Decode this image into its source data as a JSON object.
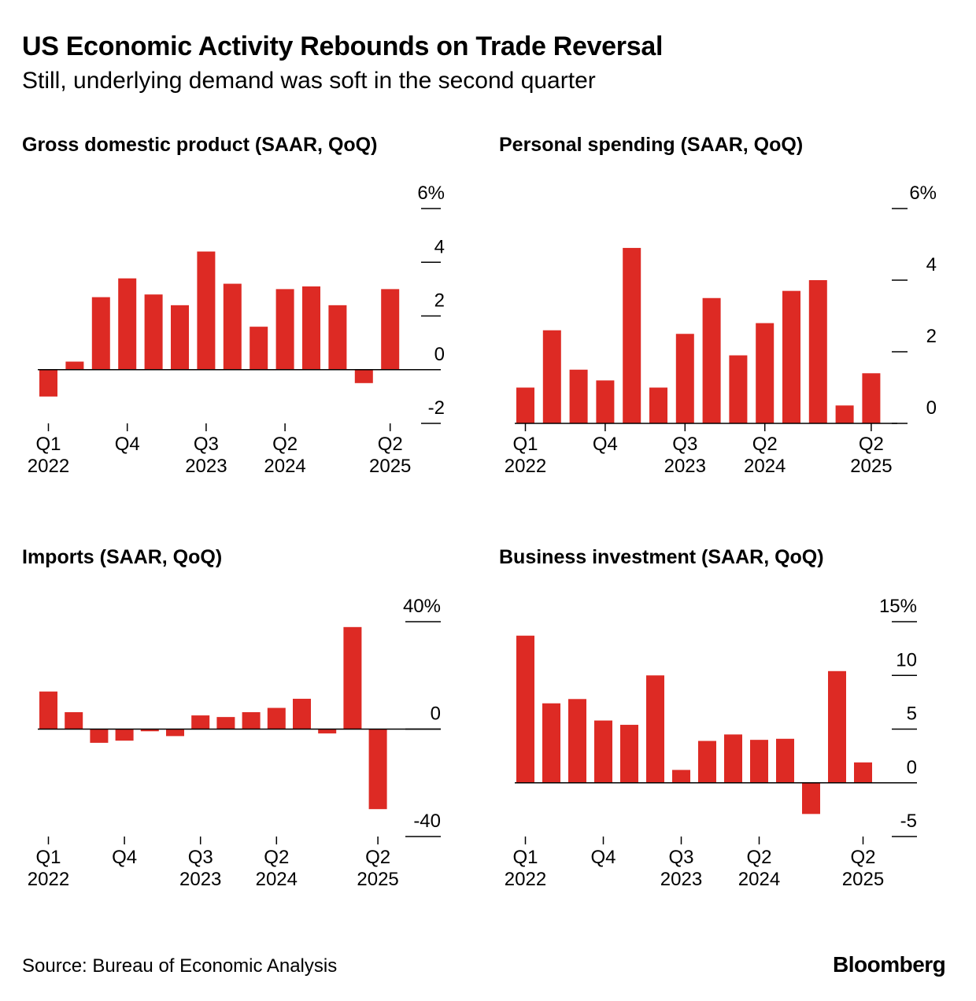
{
  "title": "US Economic Activity Rebounds on Trade Reversal",
  "subtitle": "Still, underlying demand was soft in the second quarter",
  "source": "Source: Bureau of Economic Analysis",
  "brand": "Bloomberg",
  "colors": {
    "bar": "#dd2a24"
  },
  "chart_data": [
    {
      "type": "bar",
      "title": "Gross domestic product (SAAR, QoQ)",
      "categories": [
        "Q1 2022",
        "Q2 2022",
        "Q3 2022",
        "Q4 2022",
        "Q1 2023",
        "Q2 2023",
        "Q3 2023",
        "Q4 2023",
        "Q1 2024",
        "Q2 2024",
        "Q3 2024",
        "Q4 2024",
        "Q1 2025",
        "Q2 2025"
      ],
      "values": [
        -1.0,
        0.3,
        2.7,
        3.4,
        2.8,
        2.4,
        4.4,
        3.2,
        1.6,
        3.0,
        3.1,
        2.4,
        -0.5,
        3.0
      ],
      "ylim": [
        -2,
        6
      ],
      "yticks": [
        -2,
        0,
        2,
        4,
        6
      ],
      "ytick_labels": [
        "-2",
        "0",
        "2",
        "4",
        "6%"
      ],
      "xticks": [
        {
          "index": 0,
          "q": "Q1",
          "y": "2022"
        },
        {
          "index": 3,
          "q": "Q4",
          "y": ""
        },
        {
          "index": 6,
          "q": "Q3",
          "y": "2023"
        },
        {
          "index": 9,
          "q": "Q2",
          "y": "2024"
        },
        {
          "index": 13,
          "q": "Q2",
          "y": "2025"
        }
      ]
    },
    {
      "type": "bar",
      "title": "Personal spending (SAAR, QoQ)",
      "categories": [
        "Q1 2022",
        "Q2 2022",
        "Q3 2022",
        "Q4 2022",
        "Q1 2023",
        "Q2 2023",
        "Q3 2023",
        "Q4 2023",
        "Q1 2024",
        "Q2 2024",
        "Q3 2024",
        "Q4 2024",
        "Q1 2025",
        "Q2 2025"
      ],
      "values": [
        1.0,
        2.6,
        1.5,
        1.2,
        4.9,
        1.0,
        2.5,
        3.5,
        1.9,
        2.8,
        3.7,
        4.0,
        0.5,
        1.4
      ],
      "ylim": [
        0,
        6
      ],
      "yticks": [
        0,
        2,
        4,
        6
      ],
      "ytick_labels": [
        "0",
        "2",
        "4",
        "6%"
      ],
      "xticks": [
        {
          "index": 0,
          "q": "Q1",
          "y": "2022"
        },
        {
          "index": 3,
          "q": "Q4",
          "y": ""
        },
        {
          "index": 6,
          "q": "Q3",
          "y": "2023"
        },
        {
          "index": 9,
          "q": "Q2",
          "y": "2024"
        },
        {
          "index": 13,
          "q": "Q2",
          "y": "2025"
        }
      ]
    },
    {
      "type": "bar",
      "title": "Imports (SAAR, QoQ)",
      "categories": [
        "Q1 2022",
        "Q2 2022",
        "Q3 2022",
        "Q4 2022",
        "Q1 2023",
        "Q2 2023",
        "Q3 2023",
        "Q4 2023",
        "Q1 2024",
        "Q2 2024",
        "Q3 2024",
        "Q4 2024",
        "Q1 2025",
        "Q2 2025"
      ],
      "values": [
        14,
        6.3,
        -5.1,
        -4.3,
        -0.8,
        -2.6,
        5.1,
        4.5,
        6.3,
        7.9,
        11.3,
        -1.6,
        38.0,
        -29.8
      ],
      "ylim": [
        -40,
        40
      ],
      "yticks": [
        -40,
        0,
        40
      ],
      "ytick_labels": [
        "-40",
        "0",
        "40%"
      ],
      "xticks": [
        {
          "index": 0,
          "q": "Q1",
          "y": "2022"
        },
        {
          "index": 3,
          "q": "Q4",
          "y": ""
        },
        {
          "index": 6,
          "q": "Q3",
          "y": "2023"
        },
        {
          "index": 9,
          "q": "Q2",
          "y": "2024"
        },
        {
          "index": 13,
          "q": "Q2",
          "y": "2025"
        }
      ]
    },
    {
      "type": "bar",
      "title": "Business investment (SAAR, QoQ)",
      "categories": [
        "Q1 2022",
        "Q2 2022",
        "Q3 2022",
        "Q4 2022",
        "Q1 2023",
        "Q2 2023",
        "Q3 2023",
        "Q4 2023",
        "Q1 2024",
        "Q2 2024",
        "Q3 2024",
        "Q4 2024",
        "Q1 2025",
        "Q2 2025"
      ],
      "values": [
        13.7,
        7.4,
        7.8,
        5.8,
        5.4,
        10.0,
        1.2,
        3.9,
        4.5,
        4.0,
        4.1,
        -2.9,
        10.4,
        1.9
      ],
      "ylim": [
        -5,
        15
      ],
      "yticks": [
        -5,
        0,
        5,
        10,
        15
      ],
      "ytick_labels": [
        "-5",
        "0",
        "5",
        "10",
        "15%"
      ],
      "xticks": [
        {
          "index": 0,
          "q": "Q1",
          "y": "2022"
        },
        {
          "index": 3,
          "q": "Q4",
          "y": ""
        },
        {
          "index": 6,
          "q": "Q3",
          "y": "2023"
        },
        {
          "index": 9,
          "q": "Q2",
          "y": "2024"
        },
        {
          "index": 13,
          "q": "Q2",
          "y": "2025"
        }
      ]
    }
  ]
}
